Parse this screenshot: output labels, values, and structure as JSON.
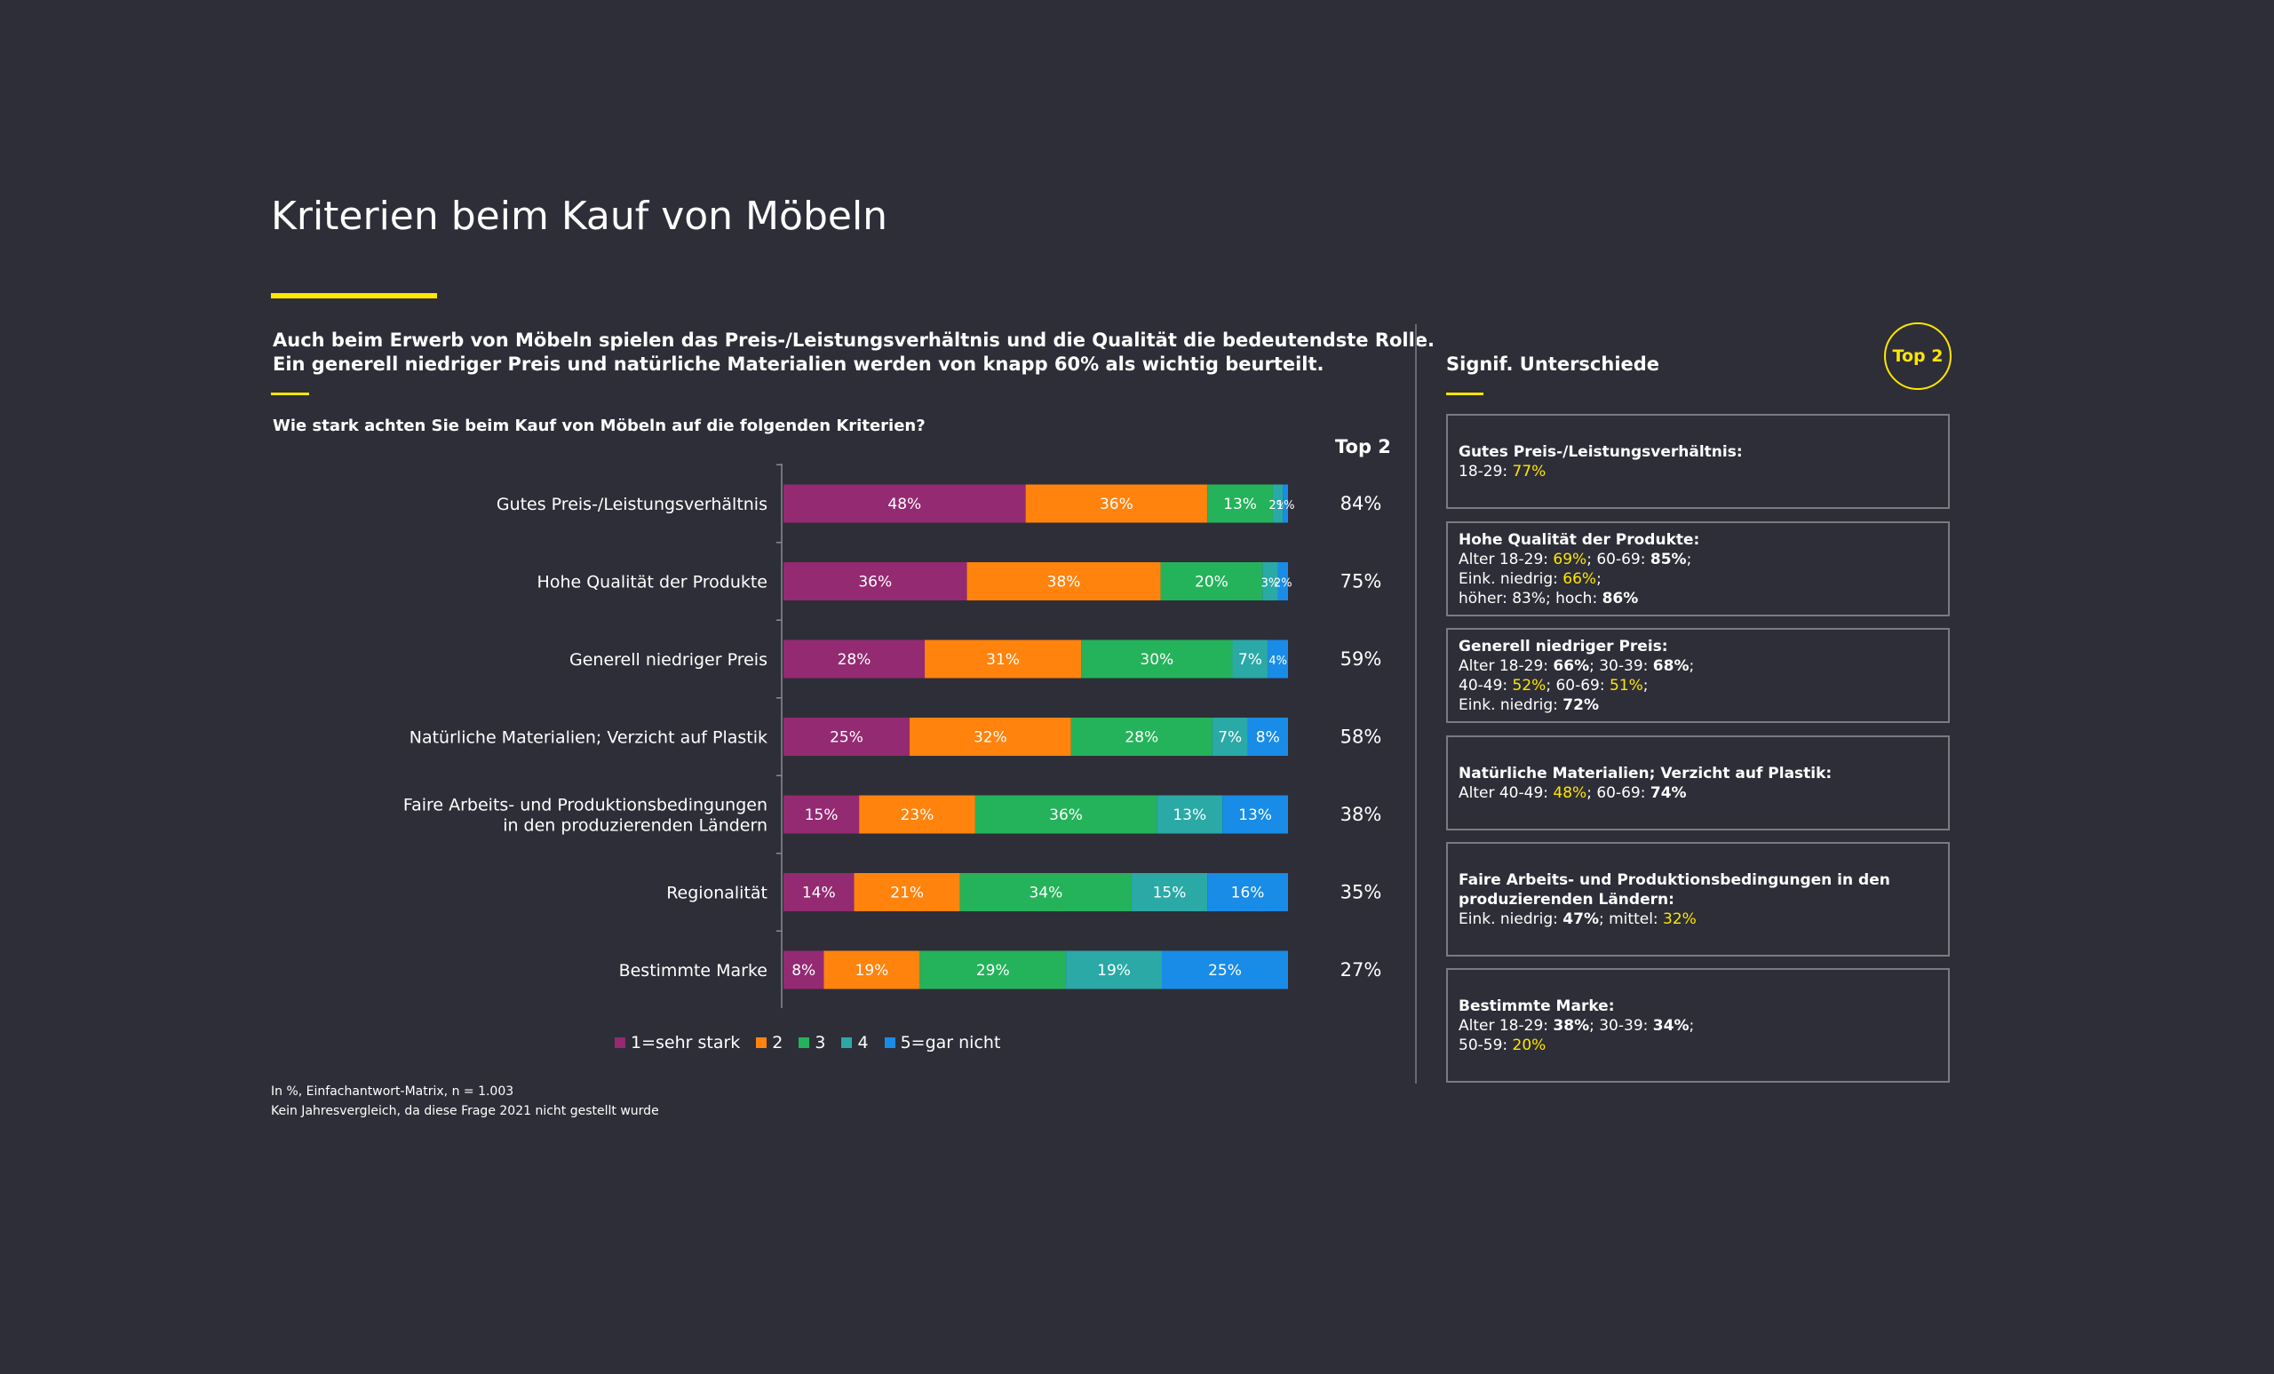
{
  "header": {
    "title": "Kriterien beim Kauf von Möbeln",
    "intro_line1": "Auch beim Erwerb von Möbeln spielen das Preis-/Leistungsverhältnis und die Qualität die bedeutendste Rolle.",
    "intro_line2": "Ein generell niedriger Preis und natürliche Materialien werden von knapp 60% als wichtig beurteilt.",
    "question": "Wie stark achten Sie beim Kauf von Möbeln auf die folgenden Kriterien?",
    "top2_label": "Top 2"
  },
  "colors": {
    "background": "#2e2e38",
    "accent": "#ffe600",
    "s1": "#932a72",
    "s2": "#ff830d",
    "s3": "#24b35a",
    "s4": "#2aa9a6",
    "s5": "#188ce6"
  },
  "chart_data": {
    "type": "bar",
    "orientation": "horizontal-stacked",
    "categories": [
      [
        "Gutes Preis-/Leistungsverhältnis"
      ],
      [
        "Hohe Qualität der Produkte"
      ],
      [
        "Generell niedriger Preis"
      ],
      [
        "Natürliche Materialien; Verzicht auf Plastik"
      ],
      [
        "Faire Arbeits- und Produktionsbedingungen",
        "in den produzierenden Ländern"
      ],
      [
        "Regionalität"
      ],
      [
        "Bestimmte Marke"
      ]
    ],
    "series": [
      {
        "name": "1=sehr stark",
        "values": [
          48,
          36,
          28,
          25,
          15,
          14,
          8
        ]
      },
      {
        "name": "2",
        "values": [
          36,
          38,
          31,
          32,
          23,
          21,
          19
        ]
      },
      {
        "name": "3",
        "values": [
          13,
          20,
          30,
          28,
          36,
          34,
          29
        ]
      },
      {
        "name": "4",
        "values": [
          2,
          3,
          7,
          7,
          13,
          15,
          19
        ]
      },
      {
        "name": "5=gar nicht",
        "values": [
          1,
          2,
          4,
          8,
          13,
          16,
          25
        ]
      }
    ],
    "value_labels": [
      [
        "48%",
        "36%",
        "13%",
        "2%",
        "1%"
      ],
      [
        "36%",
        "38%",
        "20%",
        "3%",
        "2%"
      ],
      [
        "28%",
        "31%",
        "30%",
        "7%",
        "4%"
      ],
      [
        "25%",
        "32%",
        "28%",
        "7%",
        "8%"
      ],
      [
        "15%",
        "23%",
        "36%",
        "13%",
        "13%"
      ],
      [
        "14%",
        "21%",
        "34%",
        "15%",
        "16%"
      ],
      [
        "8%",
        "19%",
        "29%",
        "19%",
        "25%"
      ]
    ],
    "top2": [
      "84%",
      "75%",
      "59%",
      "58%",
      "38%",
      "35%",
      "27%"
    ],
    "legend_position": "bottom"
  },
  "legend": [
    "1=sehr stark",
    "2",
    "3",
    "4",
    "5=gar nicht"
  ],
  "footnote": {
    "line1": "In %, Einfachantwort-Matrix, n = 1.003",
    "line2": "Kein Jahresvergleich, da diese Frage 2021 nicht gestellt wurde"
  },
  "side": {
    "title": "Signif. Unterschiede",
    "badge": "Top 2",
    "boxes": [
      {
        "heading": [
          "Gutes Preis-/Leistungsverhältnis:"
        ],
        "lines": [
          [
            {
              "t": "18-29: "
            },
            {
              "t": "77%",
              "c": "y"
            }
          ]
        ]
      },
      {
        "heading": [
          "Hohe Qualität der Produkte:"
        ],
        "lines": [
          [
            {
              "t": "Alter 18-29: "
            },
            {
              "t": "69%",
              "c": "y"
            },
            {
              "t": "; 60-69: "
            },
            {
              "t": "85%",
              "c": "b"
            },
            {
              "t": ";"
            }
          ],
          [
            {
              "t": "Eink. niedrig: "
            },
            {
              "t": "66%",
              "c": "y"
            },
            {
              "t": ";"
            }
          ],
          [
            {
              "t": "höher: 83%; hoch: "
            },
            {
              "t": "86%",
              "c": "b"
            }
          ]
        ]
      },
      {
        "heading": [
          "Generell niedriger Preis:"
        ],
        "lines": [
          [
            {
              "t": "Alter 18-29: "
            },
            {
              "t": "66%",
              "c": "b"
            },
            {
              "t": "; 30-39: "
            },
            {
              "t": "68%",
              "c": "b"
            },
            {
              "t": ";"
            }
          ],
          [
            {
              "t": "40-49: "
            },
            {
              "t": "52%",
              "c": "y"
            },
            {
              "t": "; 60-69: "
            },
            {
              "t": "51%",
              "c": "y"
            },
            {
              "t": ";"
            }
          ],
          [
            {
              "t": "Eink. niedrig: "
            },
            {
              "t": "72%",
              "c": "b"
            }
          ]
        ]
      },
      {
        "heading": [
          "Natürliche Materialien; Verzicht auf Plastik:"
        ],
        "lines": [
          [
            {
              "t": "Alter 40-49: "
            },
            {
              "t": "48%",
              "c": "y"
            },
            {
              "t": "; 60-69: "
            },
            {
              "t": "74%",
              "c": "b"
            }
          ]
        ]
      },
      {
        "heading": [
          "Faire Arbeits- und Produktionsbedingungen in den",
          "produzierenden Ländern:"
        ],
        "lines": [
          [
            {
              "t": "Eink. niedrig: "
            },
            {
              "t": "47%",
              "c": "b"
            },
            {
              "t": "; mittel: "
            },
            {
              "t": "32%",
              "c": "y"
            }
          ]
        ]
      },
      {
        "heading": [
          "Bestimmte Marke:"
        ],
        "lines": [
          [
            {
              "t": "Alter 18-29: "
            },
            {
              "t": "38%",
              "c": "b"
            },
            {
              "t": "; 30-39: "
            },
            {
              "t": "34%",
              "c": "b"
            },
            {
              "t": ";"
            }
          ],
          [
            {
              "t": "50-59: "
            },
            {
              "t": "20%",
              "c": "y"
            }
          ]
        ]
      }
    ]
  }
}
